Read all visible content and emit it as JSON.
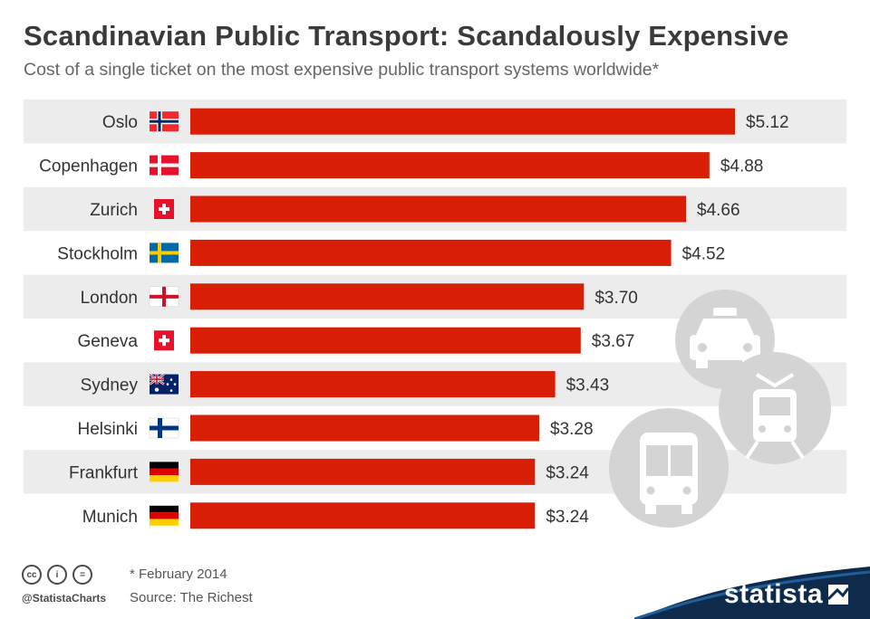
{
  "header": {
    "title": "Scandinavian Public Transport: Scandalously Expensive",
    "subtitle": "Cost of a single ticket on the most expensive public transport systems worldwide*"
  },
  "chart_data": {
    "type": "bar",
    "orientation": "horizontal",
    "categories": [
      "Oslo",
      "Copenhagen",
      "Zurich",
      "Stockholm",
      "London",
      "Geneva",
      "Sydney",
      "Helsinki",
      "Frankfurt",
      "Munich"
    ],
    "values": [
      5.12,
      4.88,
      4.66,
      4.52,
      3.7,
      3.67,
      3.43,
      3.28,
      3.24,
      3.24
    ],
    "data_labels": [
      "$5.12",
      "$4.88",
      "$4.66",
      "$4.52",
      "$3.70",
      "$3.67",
      "$3.43",
      "$3.28",
      "$3.24",
      "$3.24"
    ],
    "flags": [
      "norway-flag-icon",
      "denmark-flag-icon",
      "switzerland-flag-icon",
      "sweden-flag-icon",
      "england-flag-icon",
      "switzerland-flag-icon",
      "australia-flag-icon",
      "finland-flag-icon",
      "germany-flag-icon",
      "germany-flag-icon"
    ],
    "xlim": [
      0,
      5.12
    ],
    "grid": false,
    "bar_color": "#d81e05",
    "row_band_color": "#ececec"
  },
  "footer": {
    "note": "* February 2014",
    "source": "Source: The Richest",
    "handle": "@StatistaCharts",
    "brand": "statista",
    "license_icons": [
      "cc-icon",
      "attribution-icon",
      "no-derivatives-icon"
    ]
  },
  "decor_icons": [
    "taxi-icon",
    "tram-icon",
    "bus-icon"
  ]
}
